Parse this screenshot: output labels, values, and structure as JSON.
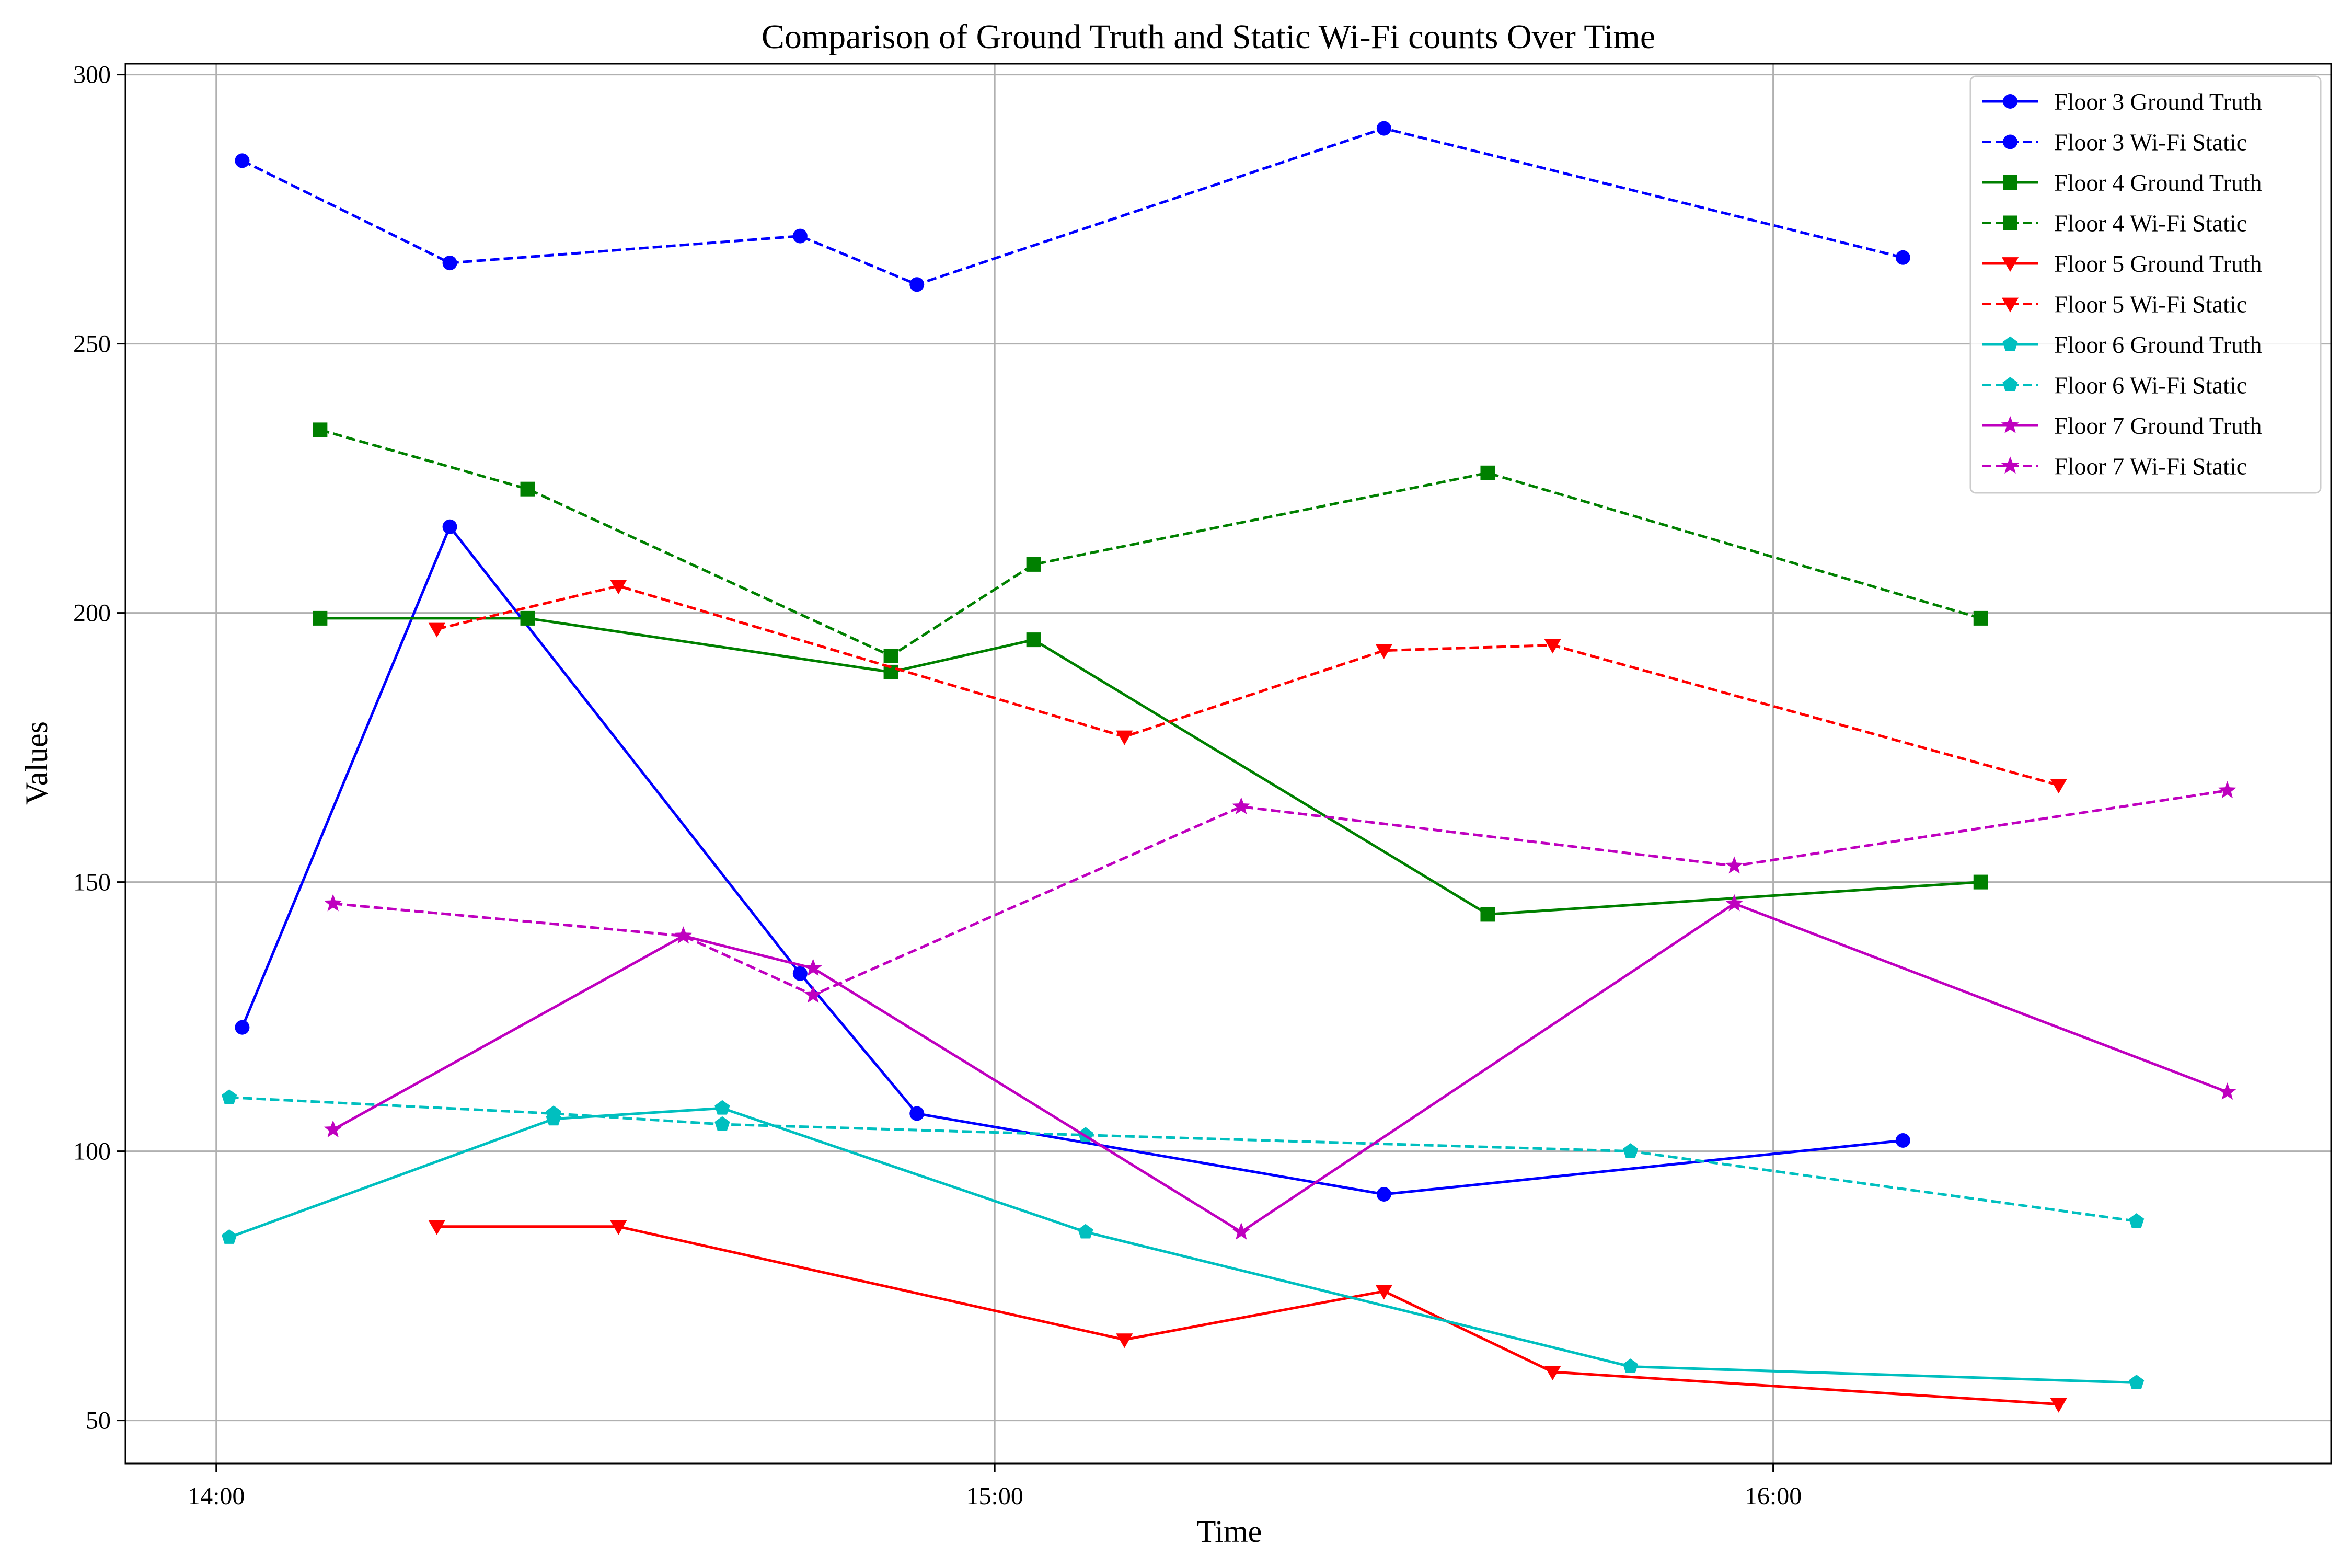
{
  "chart_data": {
    "type": "line",
    "title": "Comparison of Ground Truth and Static Wi-Fi counts Over Time",
    "xlabel": "Time",
    "ylabel": "Values",
    "x_type": "time",
    "xlim": [
      "13:53",
      "16:43"
    ],
    "ylim": [
      42,
      302
    ],
    "x_ticks": [
      "14:00",
      "15:00",
      "16:00"
    ],
    "y_ticks": [
      50,
      100,
      150,
      200,
      250,
      300
    ],
    "grid": true,
    "legend_position": "top-right",
    "series": [
      {
        "name": "Floor 3 Ground Truth",
        "color": "#0000ff",
        "line_style": "solid",
        "marker": "circle",
        "points": [
          [
            "14:02",
            123
          ],
          [
            "14:18",
            216
          ],
          [
            "14:45",
            133
          ],
          [
            "14:54",
            107
          ],
          [
            "15:30",
            92
          ],
          [
            "16:10",
            102
          ]
        ]
      },
      {
        "name": "Floor 3 Wi-Fi Static",
        "color": "#0000ff",
        "line_style": "dashed",
        "marker": "circle",
        "points": [
          [
            "14:02",
            284
          ],
          [
            "14:18",
            265
          ],
          [
            "14:45",
            270
          ],
          [
            "14:54",
            261
          ],
          [
            "15:30",
            290
          ],
          [
            "16:10",
            266
          ]
        ]
      },
      {
        "name": "Floor 4 Ground Truth",
        "color": "#008000",
        "line_style": "solid",
        "marker": "square",
        "points": [
          [
            "14:08",
            199
          ],
          [
            "14:24",
            199
          ],
          [
            "14:52",
            189
          ],
          [
            "15:03",
            195
          ],
          [
            "15:38",
            144
          ],
          [
            "16:16",
            150
          ]
        ]
      },
      {
        "name": "Floor 4 Wi-Fi Static",
        "color": "#008000",
        "line_style": "dashed",
        "marker": "square",
        "points": [
          [
            "14:08",
            234
          ],
          [
            "14:24",
            223
          ],
          [
            "14:52",
            192
          ],
          [
            "15:03",
            209
          ],
          [
            "15:38",
            226
          ],
          [
            "16:16",
            199
          ]
        ]
      },
      {
        "name": "Floor 5 Ground Truth",
        "color": "#ff0000",
        "line_style": "solid",
        "marker": "triangle-down",
        "points": [
          [
            "14:17",
            86
          ],
          [
            "14:31",
            86
          ],
          [
            "15:10",
            65
          ],
          [
            "15:30",
            74
          ],
          [
            "15:43",
            59
          ],
          [
            "16:22",
            53
          ]
        ]
      },
      {
        "name": "Floor 5 Wi-Fi Static",
        "color": "#ff0000",
        "line_style": "dashed",
        "marker": "triangle-down",
        "points": [
          [
            "14:17",
            197
          ],
          [
            "14:31",
            205
          ],
          [
            "15:10",
            177
          ],
          [
            "15:30",
            193
          ],
          [
            "15:43",
            194
          ],
          [
            "16:22",
            168
          ]
        ]
      },
      {
        "name": "Floor 6 Ground Truth",
        "color": "#00bfbf",
        "line_style": "solid",
        "marker": "pentagon",
        "points": [
          [
            "14:01",
            84
          ],
          [
            "14:26",
            106
          ],
          [
            "14:39",
            108
          ],
          [
            "15:07",
            85
          ],
          [
            "15:49",
            60
          ],
          [
            "16:28",
            57
          ]
        ]
      },
      {
        "name": "Floor 6 Wi-Fi Static",
        "color": "#00bfbf",
        "line_style": "dashed",
        "marker": "pentagon",
        "points": [
          [
            "14:01",
            110
          ],
          [
            "14:26",
            107
          ],
          [
            "14:39",
            105
          ],
          [
            "15:07",
            103
          ],
          [
            "15:49",
            100
          ],
          [
            "16:28",
            87
          ]
        ]
      },
      {
        "name": "Floor 7 Ground Truth",
        "color": "#bf00bf",
        "line_style": "solid",
        "marker": "star",
        "points": [
          [
            "14:09",
            104
          ],
          [
            "14:36",
            140
          ],
          [
            "14:46",
            134
          ],
          [
            "15:19",
            85
          ],
          [
            "15:57",
            146
          ],
          [
            "16:35",
            111
          ]
        ]
      },
      {
        "name": "Floor 7 Wi-Fi Static",
        "color": "#bf00bf",
        "line_style": "dashed",
        "marker": "star",
        "points": [
          [
            "14:09",
            146
          ],
          [
            "14:36",
            140
          ],
          [
            "14:46",
            129
          ],
          [
            "15:19",
            164
          ],
          [
            "15:57",
            153
          ],
          [
            "16:35",
            167
          ]
        ]
      }
    ]
  }
}
